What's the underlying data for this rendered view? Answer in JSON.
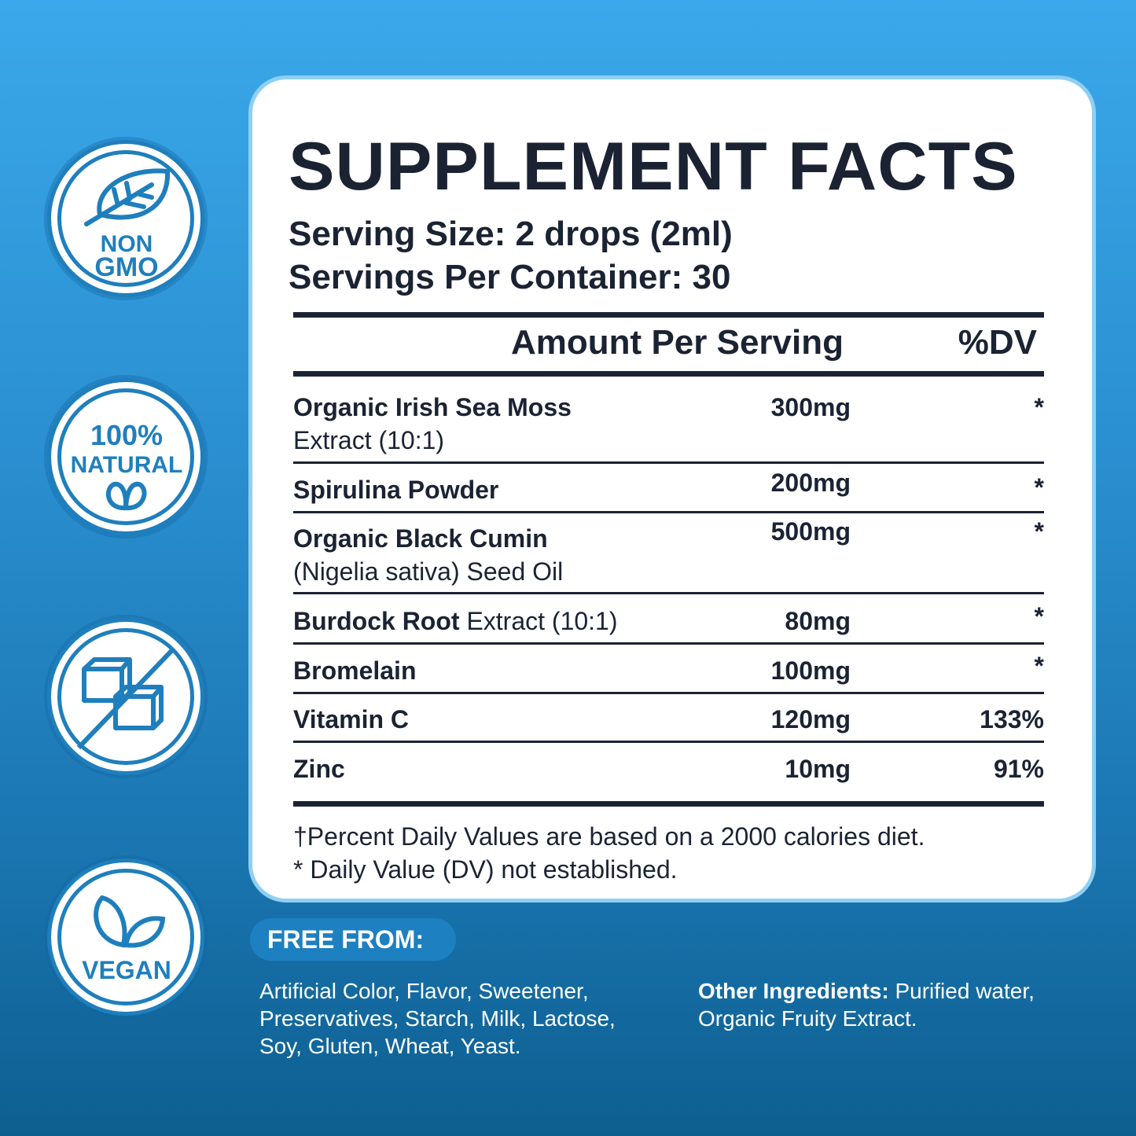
{
  "badges": [
    {
      "icon": "leaf-icon",
      "lines": [
        "NON",
        "GMO"
      ]
    },
    {
      "icon": "leaves-icon",
      "lines": [
        "100%",
        "NATURAL"
      ]
    },
    {
      "icon": "no-sugar-cubes-icon",
      "lines": []
    },
    {
      "icon": "vegan-leaves-icon",
      "lines": [
        "VEGAN"
      ]
    }
  ],
  "facts": {
    "title": "SUPPLEMENT FACTS",
    "serving_size": "Serving Size: 2 drops (2ml)",
    "servings_per_container": "Servings Per Container: 30",
    "header_amount": "Amount Per Serving",
    "header_dv": "%DV",
    "rows": [
      {
        "name_bold": "Organic Irish Sea Moss",
        "name_rest": "Extract (10:1)",
        "amount": "300mg",
        "dv": "*"
      },
      {
        "name_bold": "Spirulina Powder",
        "name_rest": "",
        "amount": "200mg",
        "dv": "*"
      },
      {
        "name_bold": "Organic Black Cumin",
        "name_rest": "(Nigelia sativa) Seed Oil",
        "amount": "500mg",
        "dv": "*"
      },
      {
        "name_bold": "Burdock Root",
        "name_rest": " Extract (10:1)",
        "amount": "80mg",
        "dv": "*"
      },
      {
        "name_bold": "Bromelain",
        "name_rest": "",
        "amount": "100mg",
        "dv": "*"
      },
      {
        "name_bold": "Vitamin C",
        "name_rest": "",
        "amount": "120mg",
        "dv": "133%"
      },
      {
        "name_bold": "Zinc",
        "name_rest": "",
        "amount": "10mg",
        "dv": "91%"
      }
    ],
    "footnote_1": "†Percent Daily Values are based on a 2000 calories diet.",
    "footnote_2": "* Daily Value (DV) not established."
  },
  "free_from": {
    "label": "FREE FROM:",
    "lines": [
      "Artificial Color, Flavor, Sweetener,",
      "Preservatives, Starch, Milk, Lactose,",
      "Soy, Gluten, Wheat, Yeast."
    ]
  },
  "other_ingredients": {
    "label": "Other Ingredients:",
    "lines": [
      " Purified water,",
      "Organic Fruity Extract."
    ]
  },
  "colors": {
    "badge_blue": "#1f7fbd",
    "text_dark": "#1b2333",
    "card_border": "#8fcff2"
  }
}
